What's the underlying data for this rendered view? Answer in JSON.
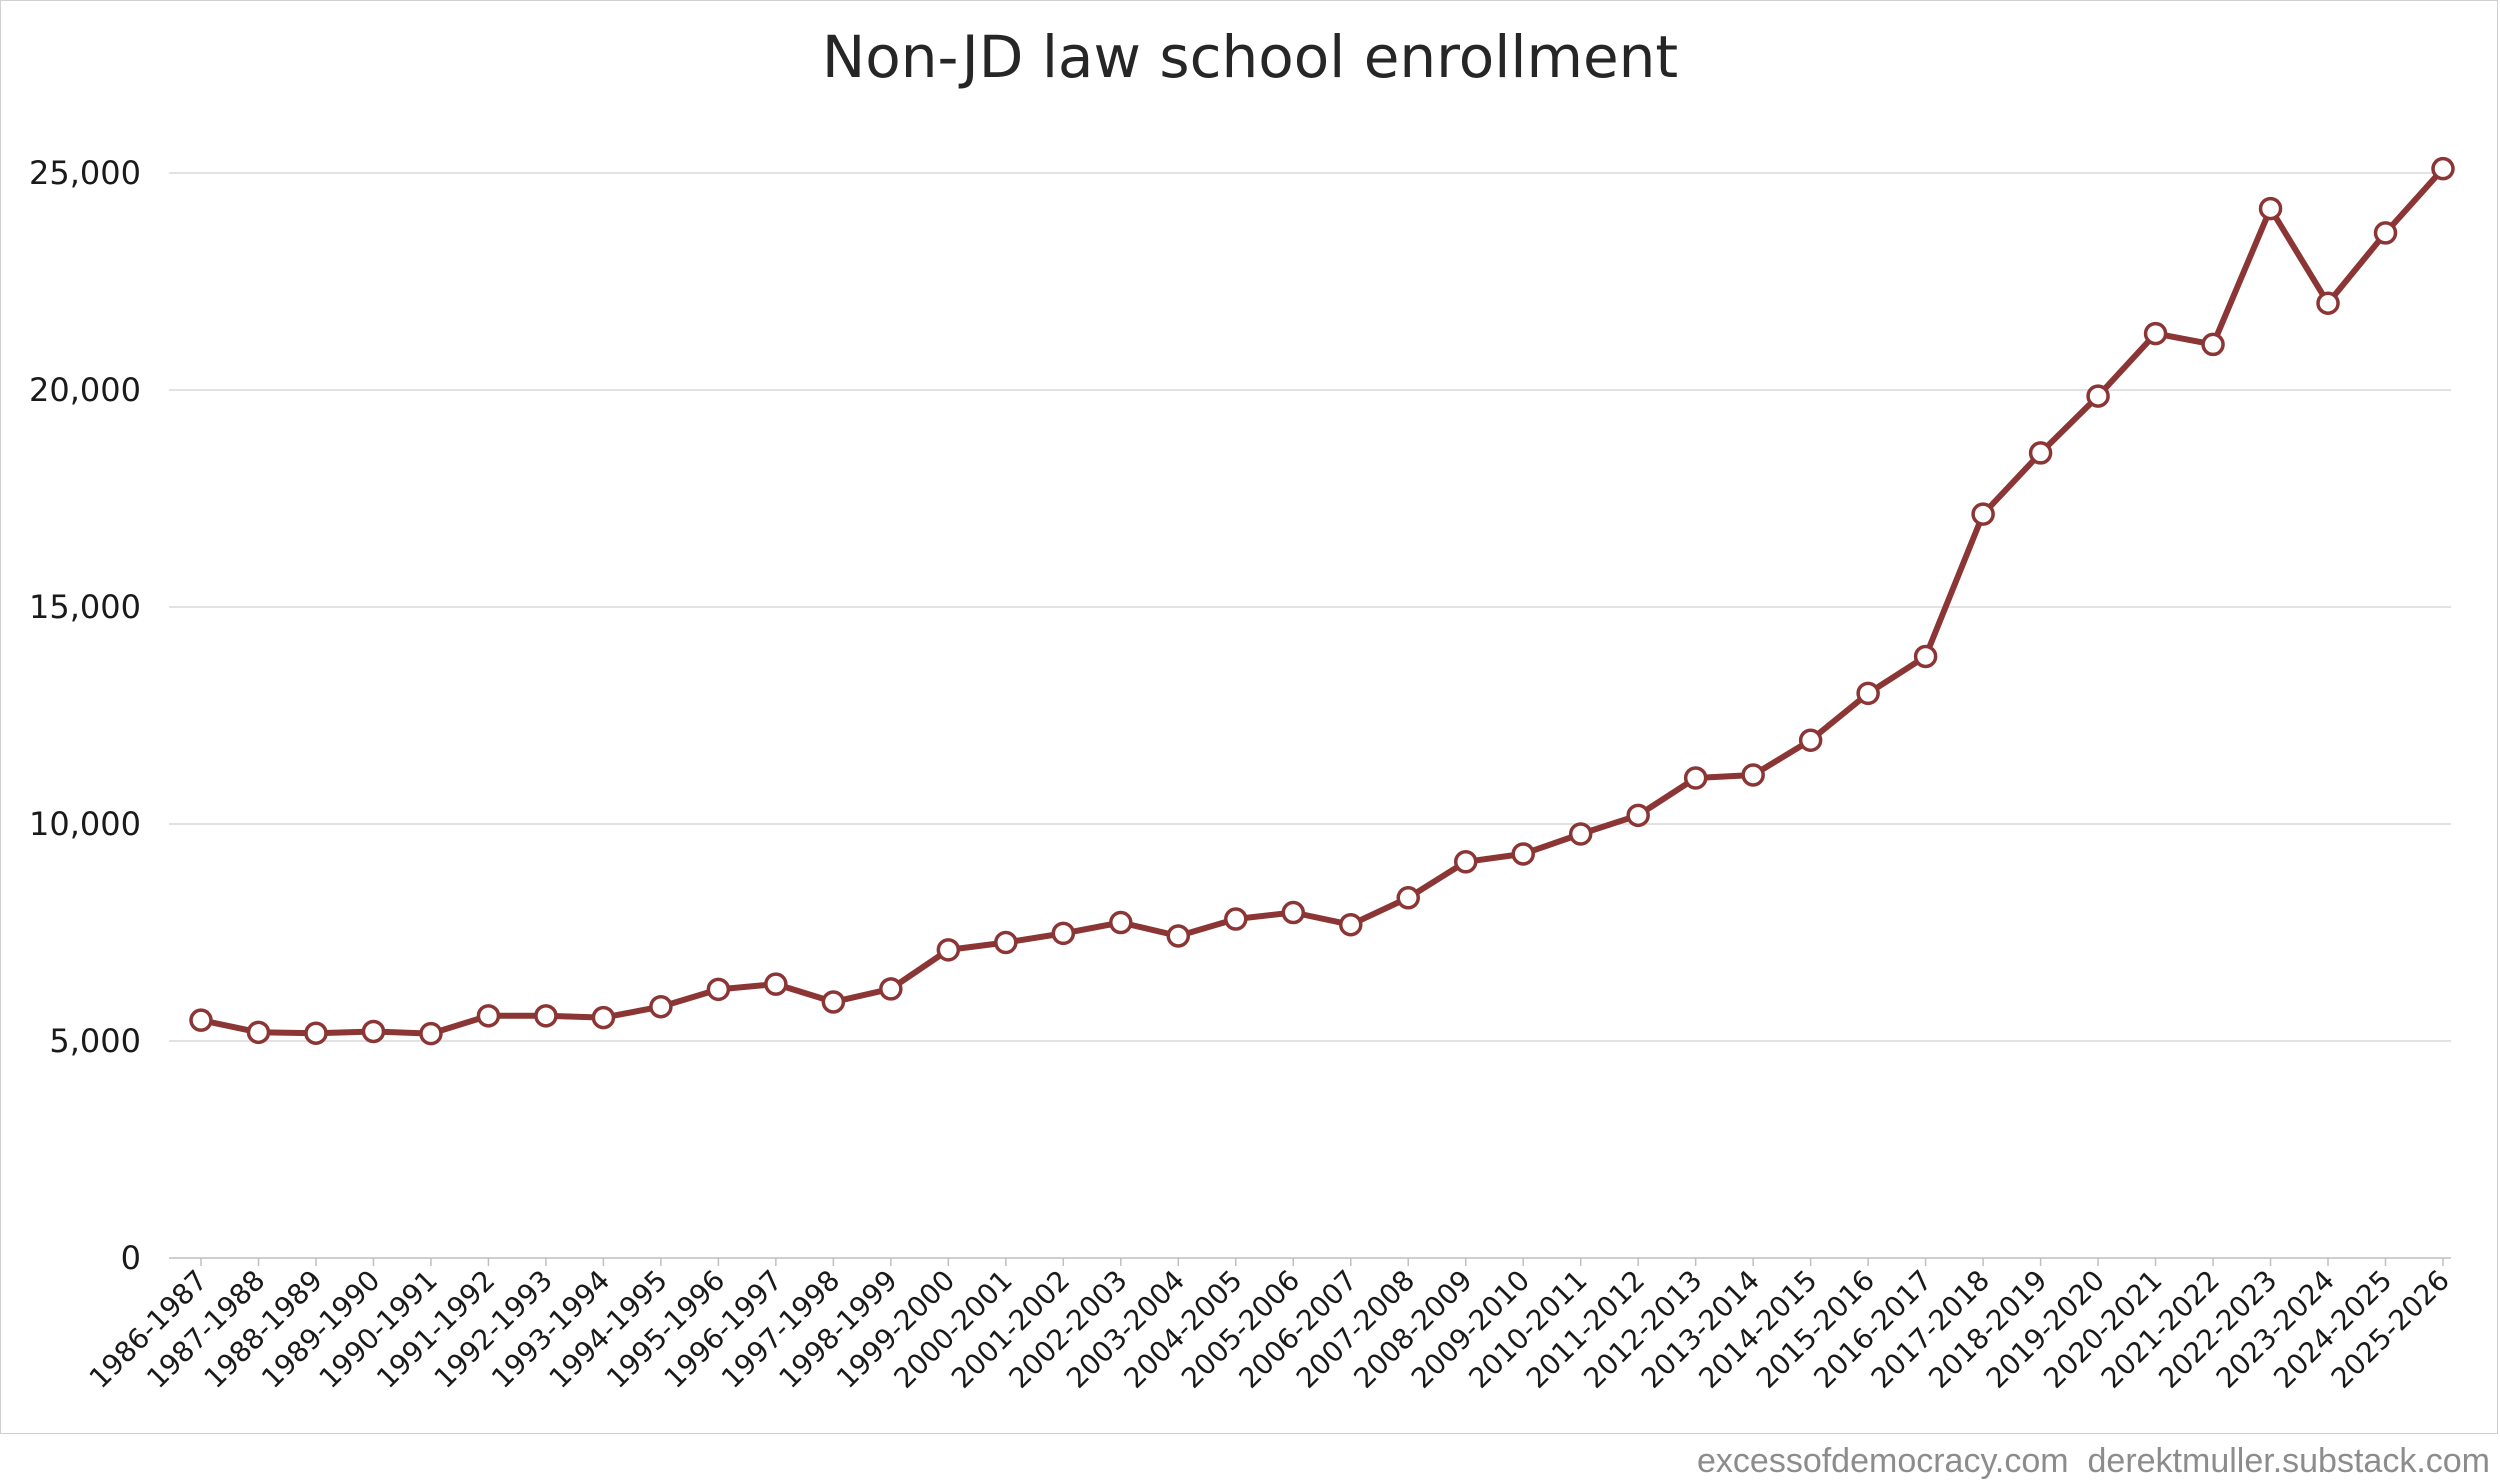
{
  "colors": {
    "line": "#8B3535",
    "marker_fill": "#ffffff",
    "grid": "#d9d9d9",
    "title": "#262626",
    "credit": "#8c8c8c"
  },
  "credit": {
    "text": "excessofdemocracy.com  derektmuller.substack.com"
  },
  "chart_data": {
    "type": "line",
    "title": "Non-JD law school enrollment",
    "xlabel": "",
    "ylabel": "",
    "ylim": [
      0,
      25000
    ],
    "yticks": [
      0,
      5000,
      10000,
      15000,
      20000,
      25000
    ],
    "ytick_labels": [
      "0",
      "5,000",
      "10,000",
      "15,000",
      "20,000",
      "25,000"
    ],
    "grid": true,
    "legend": "none",
    "markers": "hollow-circle",
    "categories": [
      "1986-1987",
      "1987-1988",
      "1988-1989",
      "1989-1990",
      "1990-1991",
      "1991-1992",
      "1992-1993",
      "1993-1994",
      "1994-1995",
      "1995-1996",
      "1996-1997",
      "1997-1998",
      "1998-1999",
      "1999-2000",
      "2000-2001",
      "2001-2002",
      "2002-2003",
      "2003-2004",
      "2004-2005",
      "2005-2006",
      "2006-2007",
      "2007-2008",
      "2008-2009",
      "2009-2010",
      "2010-2011",
      "2011-2012",
      "2012-2013",
      "2013-2014",
      "2014-2015",
      "2015-2016",
      "2016-2017",
      "2017-2018",
      "2018-2019",
      "2019-2020",
      "2020-2021",
      "2021-2022",
      "2022-2023",
      "2023-2024",
      "2024-2025",
      "2025-2026"
    ],
    "series": [
      {
        "values": [
          5480,
          5200,
          5180,
          5220,
          5170,
          5580,
          5580,
          5540,
          5790,
          6190,
          6310,
          5900,
          6200,
          7100,
          7270,
          7480,
          7730,
          7420,
          7810,
          7960,
          7680,
          8300,
          9130,
          9310,
          9770,
          10200,
          11060,
          11130,
          11930,
          13010,
          13860,
          17140,
          18550,
          19860,
          21300,
          21050,
          24180,
          22000,
          23620,
          25100
        ]
      }
    ]
  }
}
